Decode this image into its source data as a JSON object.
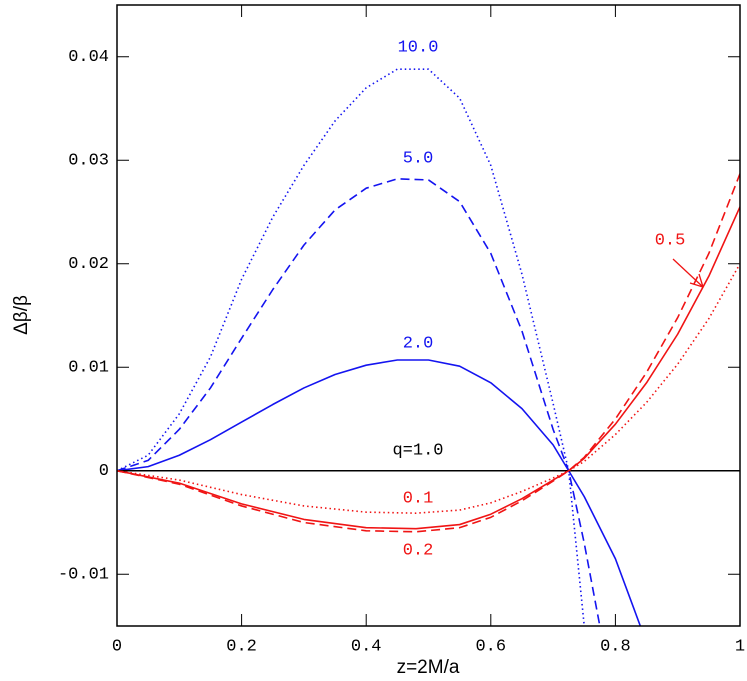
{
  "chart_data": {
    "type": "line",
    "xlabel": "z=2M/a",
    "ylabel": "Δβ/β",
    "xlim": [
      0,
      1
    ],
    "ylim": [
      -0.015,
      0.045
    ],
    "xticks": [
      0,
      0.2,
      0.4,
      0.6,
      0.8,
      1
    ],
    "yticks": [
      -0.01,
      0,
      0.01,
      0.02,
      0.03,
      0.04
    ],
    "series": [
      {
        "name": "10.0",
        "color": "#1414f0",
        "dash": "dotted",
        "x": [
          0,
          0.05,
          0.1,
          0.15,
          0.2,
          0.25,
          0.3,
          0.35,
          0.4,
          0.45,
          0.5,
          0.55,
          0.6,
          0.65,
          0.7,
          0.725,
          0.75
        ],
        "values": [
          0,
          0.0015,
          0.0055,
          0.011,
          0.0185,
          0.0245,
          0.0295,
          0.0338,
          0.037,
          0.0388,
          0.0388,
          0.036,
          0.0295,
          0.019,
          0.0065,
          0,
          -0.015
        ]
      },
      {
        "name": "5.0",
        "color": "#1414f0",
        "dash": "dashed",
        "x": [
          0,
          0.05,
          0.1,
          0.15,
          0.2,
          0.25,
          0.3,
          0.35,
          0.4,
          0.45,
          0.5,
          0.55,
          0.6,
          0.65,
          0.7,
          0.725,
          0.75,
          0.775
        ],
        "values": [
          0,
          0.001,
          0.004,
          0.008,
          0.0128,
          0.0175,
          0.0218,
          0.0252,
          0.0273,
          0.0282,
          0.0281,
          0.026,
          0.021,
          0.0135,
          0.004,
          0,
          -0.007,
          -0.015
        ]
      },
      {
        "name": "2.0",
        "color": "#1414f0",
        "dash": "solid",
        "x": [
          0,
          0.05,
          0.1,
          0.15,
          0.2,
          0.25,
          0.3,
          0.35,
          0.4,
          0.45,
          0.5,
          0.55,
          0.6,
          0.65,
          0.7,
          0.725,
          0.75,
          0.8,
          0.84
        ],
        "values": [
          0,
          0.0004,
          0.0015,
          0.003,
          0.0047,
          0.0064,
          0.008,
          0.0093,
          0.0102,
          0.0107,
          0.0107,
          0.0101,
          0.0085,
          0.006,
          0.0025,
          0,
          -0.0025,
          -0.0085,
          -0.015
        ]
      },
      {
        "name": "q=1.0",
        "color": "#000000",
        "dash": "solid",
        "x": [
          0,
          1
        ],
        "values": [
          0,
          0
        ]
      },
      {
        "name": "0.5",
        "color": "#f01414",
        "dash": "solid",
        "x": [
          0,
          0.1,
          0.2,
          0.3,
          0.4,
          0.48,
          0.55,
          0.6,
          0.65,
          0.7,
          0.725,
          0.75,
          0.8,
          0.85,
          0.9,
          0.95,
          1
        ],
        "values": [
          0,
          -0.0012,
          -0.0032,
          -0.0047,
          -0.0055,
          -0.0056,
          -0.0052,
          -0.0042,
          -0.0027,
          -0.0009,
          0,
          0.0012,
          0.0045,
          0.0085,
          0.0132,
          0.0188,
          0.0255
        ]
      },
      {
        "name": "0.1",
        "color": "#f01414",
        "dash": "dotted",
        "x": [
          0,
          0.1,
          0.2,
          0.3,
          0.4,
          0.48,
          0.55,
          0.6,
          0.65,
          0.7,
          0.725,
          0.75,
          0.8,
          0.85,
          0.9,
          0.95,
          1
        ],
        "values": [
          0,
          -0.0009,
          -0.0023,
          -0.0034,
          -0.004,
          -0.0041,
          -0.0038,
          -0.0031,
          -0.002,
          -0.0007,
          0,
          0.0009,
          0.0035,
          0.0066,
          0.0103,
          0.0147,
          0.02
        ]
      },
      {
        "name": "0.2",
        "color": "#f01414",
        "dash": "dashed",
        "x": [
          0,
          0.1,
          0.2,
          0.3,
          0.4,
          0.48,
          0.55,
          0.6,
          0.65,
          0.7,
          0.725,
          0.75,
          0.8,
          0.85,
          0.9,
          0.95,
          1
        ],
        "values": [
          0,
          -0.0013,
          -0.0034,
          -0.005,
          -0.0058,
          -0.0059,
          -0.0055,
          -0.0045,
          -0.0029,
          -0.001,
          0,
          0.0013,
          0.005,
          0.0095,
          0.0148,
          0.021,
          0.0287
        ]
      }
    ]
  }
}
